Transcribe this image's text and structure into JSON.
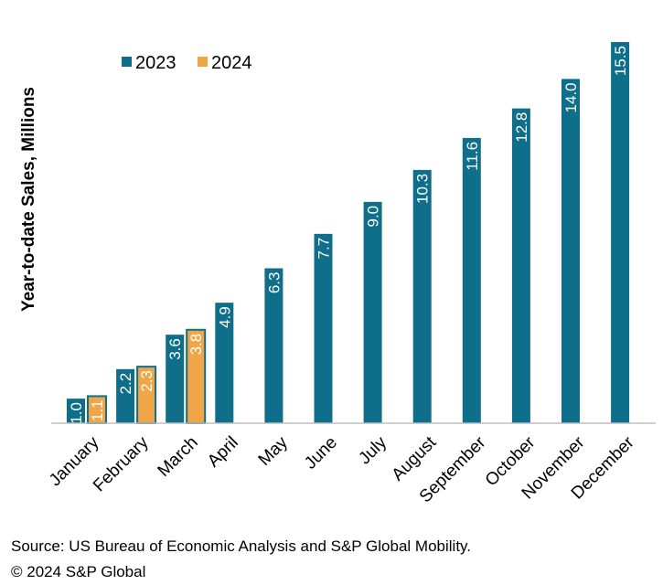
{
  "chart_data": {
    "type": "bar",
    "categories": [
      "January",
      "February",
      "March",
      "April",
      "May",
      "June",
      "July",
      "August",
      "September",
      "October",
      "November",
      "December"
    ],
    "series": [
      {
        "name": "2023",
        "color": "#0f6e89",
        "values": [
          1.0,
          2.2,
          3.6,
          4.9,
          6.3,
          7.7,
          9.0,
          10.3,
          11.6,
          12.8,
          14.0,
          15.5
        ]
      },
      {
        "name": "2024",
        "color": "#f0a646",
        "values": [
          1.1,
          2.3,
          3.8,
          null,
          null,
          null,
          null,
          null,
          null,
          null,
          null,
          null
        ]
      }
    ],
    "ylabel": "Year-to-date Sales, Millions",
    "xlabel": "",
    "ylim": [
      0,
      15.5
    ],
    "grid": false,
    "legend": "top-left"
  },
  "footer": {
    "source": "Source: US Bureau of Economic Analysis and S&P Global Mobility.",
    "copyright": "© 2024 S&P Global"
  }
}
